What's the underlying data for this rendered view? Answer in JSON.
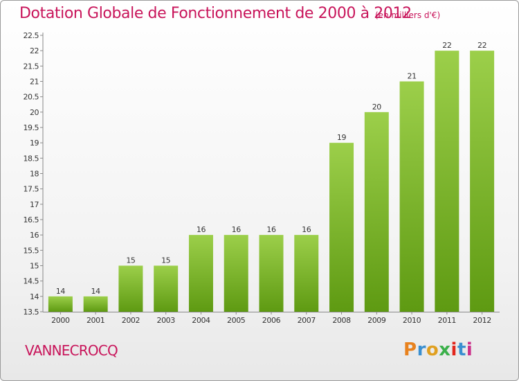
{
  "header": {
    "title": "Dotation Globale de Fonctionnement de 2000 à 2012",
    "unit": "(en milliers d'€)"
  },
  "footer": {
    "commune": "VANNECROCQ",
    "brand": "Proxiti"
  },
  "colors": {
    "title": "#c8145a",
    "bar_top": "#9ccf4a",
    "bar_bottom": "#5e9a12",
    "logo_letters": [
      "#e8821e",
      "#3a8fd0",
      "#e0a020",
      "#3bb04a",
      "#e2261d",
      "#3a8fd0",
      "#cc2f8a"
    ]
  },
  "chart_data": {
    "type": "bar",
    "title": "Dotation Globale de Fonctionnement de 2000 à 2012",
    "subtitle": "(en milliers d'€)",
    "xlabel": "",
    "ylabel": "",
    "categories": [
      "2000",
      "2001",
      "2002",
      "2003",
      "2004",
      "2005",
      "2006",
      "2007",
      "2008",
      "2009",
      "2010",
      "2011",
      "2012"
    ],
    "values": [
      14,
      14,
      15,
      15,
      16,
      16,
      16,
      16,
      19,
      20,
      21,
      22,
      22
    ],
    "ylim": [
      13.5,
      22.5
    ],
    "yticks": [
      "13.5",
      "14",
      "14.5",
      "15",
      "15.5",
      "16",
      "16.5",
      "17",
      "17.5",
      "18",
      "18.5",
      "19",
      "19.5",
      "20",
      "20.5",
      "21",
      "21.5",
      "22",
      "22.5"
    ],
    "grid": false,
    "legend": "none"
  }
}
